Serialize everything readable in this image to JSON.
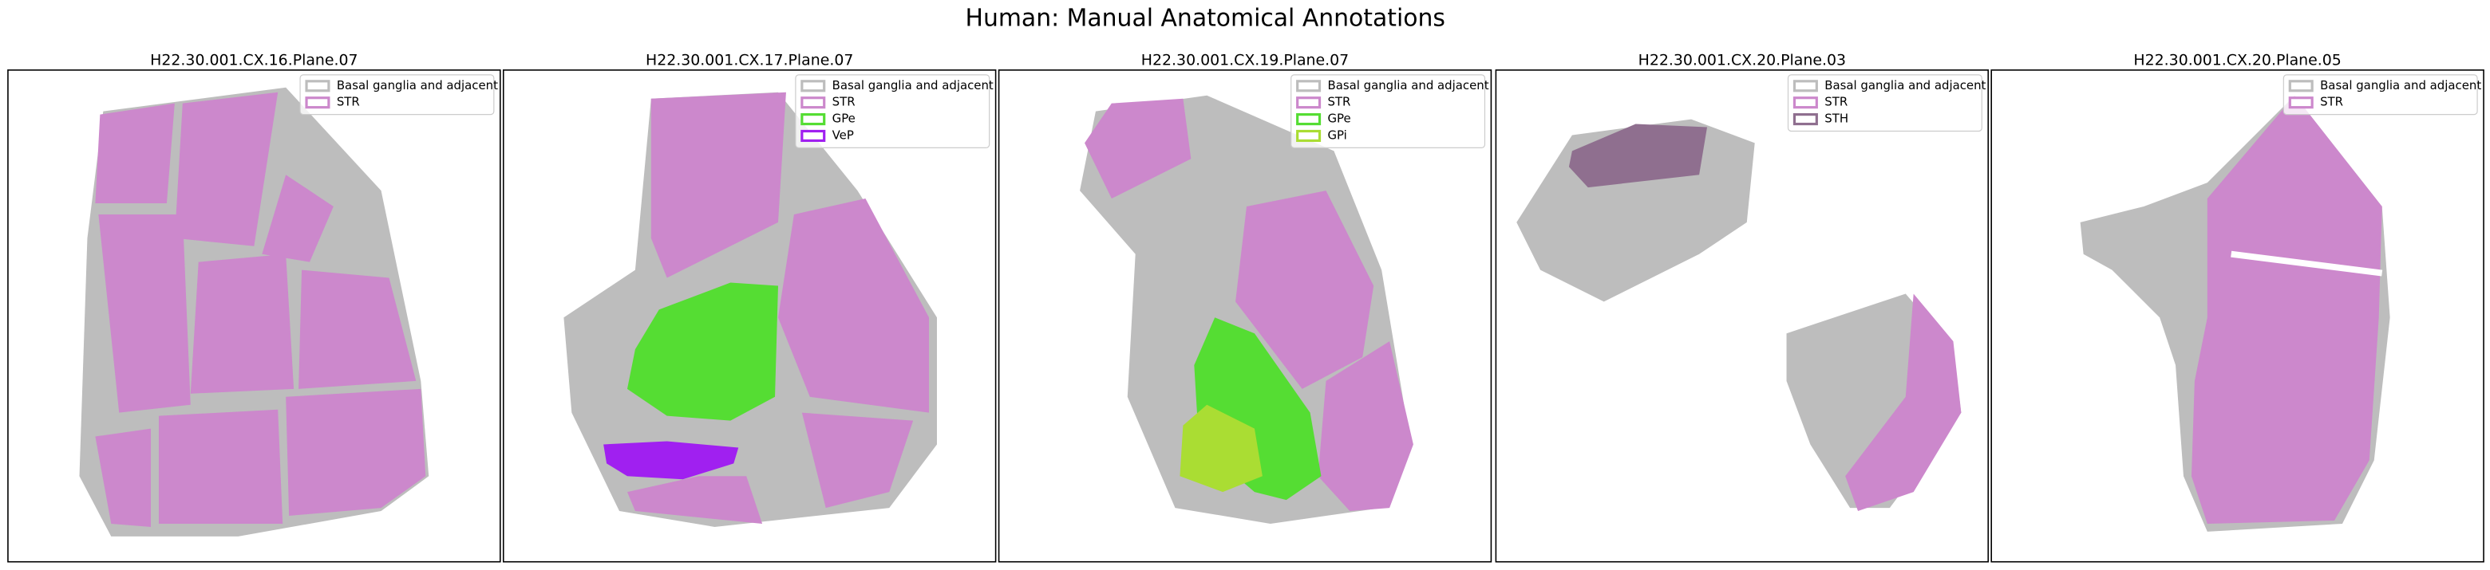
{
  "title": "Human: Manual Anatomical Annotations",
  "panels": [
    {
      "title": "H22.30.001.CX.16.Plane.07",
      "legend": [
        {
          "label": "Basal ganglia and adjacent",
          "color": "#bdbdbd"
        },
        {
          "label": "STR",
          "color": "#cc88cc"
        }
      ]
    },
    {
      "title": "H22.30.001.CX.17.Plane.07",
      "legend": [
        {
          "label": "Basal ganglia and adjacent",
          "color": "#bdbdbd"
        },
        {
          "label": "STR",
          "color": "#cc88cc"
        },
        {
          "label": "GPe",
          "color": "#55dd33"
        },
        {
          "label": "VeP",
          "color": "#a020f0"
        }
      ]
    },
    {
      "title": "H22.30.001.CX.19.Plane.07",
      "legend": [
        {
          "label": "Basal ganglia and adjacent",
          "color": "#bdbdbd"
        },
        {
          "label": "STR",
          "color": "#cc88cc"
        },
        {
          "label": "GPe",
          "color": "#55dd33"
        },
        {
          "label": "GPi",
          "color": "#aadd33"
        }
      ]
    },
    {
      "title": "H22.30.001.CX.20.Plane.03",
      "legend": [
        {
          "label": "Basal ganglia and adjacent",
          "color": "#bdbdbd"
        },
        {
          "label": "STR",
          "color": "#cc88cc"
        },
        {
          "label": "STH",
          "color": "#8f6f8f"
        }
      ]
    },
    {
      "title": "H22.30.001.CX.20.Plane.05",
      "legend": [
        {
          "label": "Basal ganglia and adjacent",
          "color": "#bdbdbd"
        },
        {
          "label": "STR",
          "color": "#cc88cc"
        }
      ]
    }
  ]
}
